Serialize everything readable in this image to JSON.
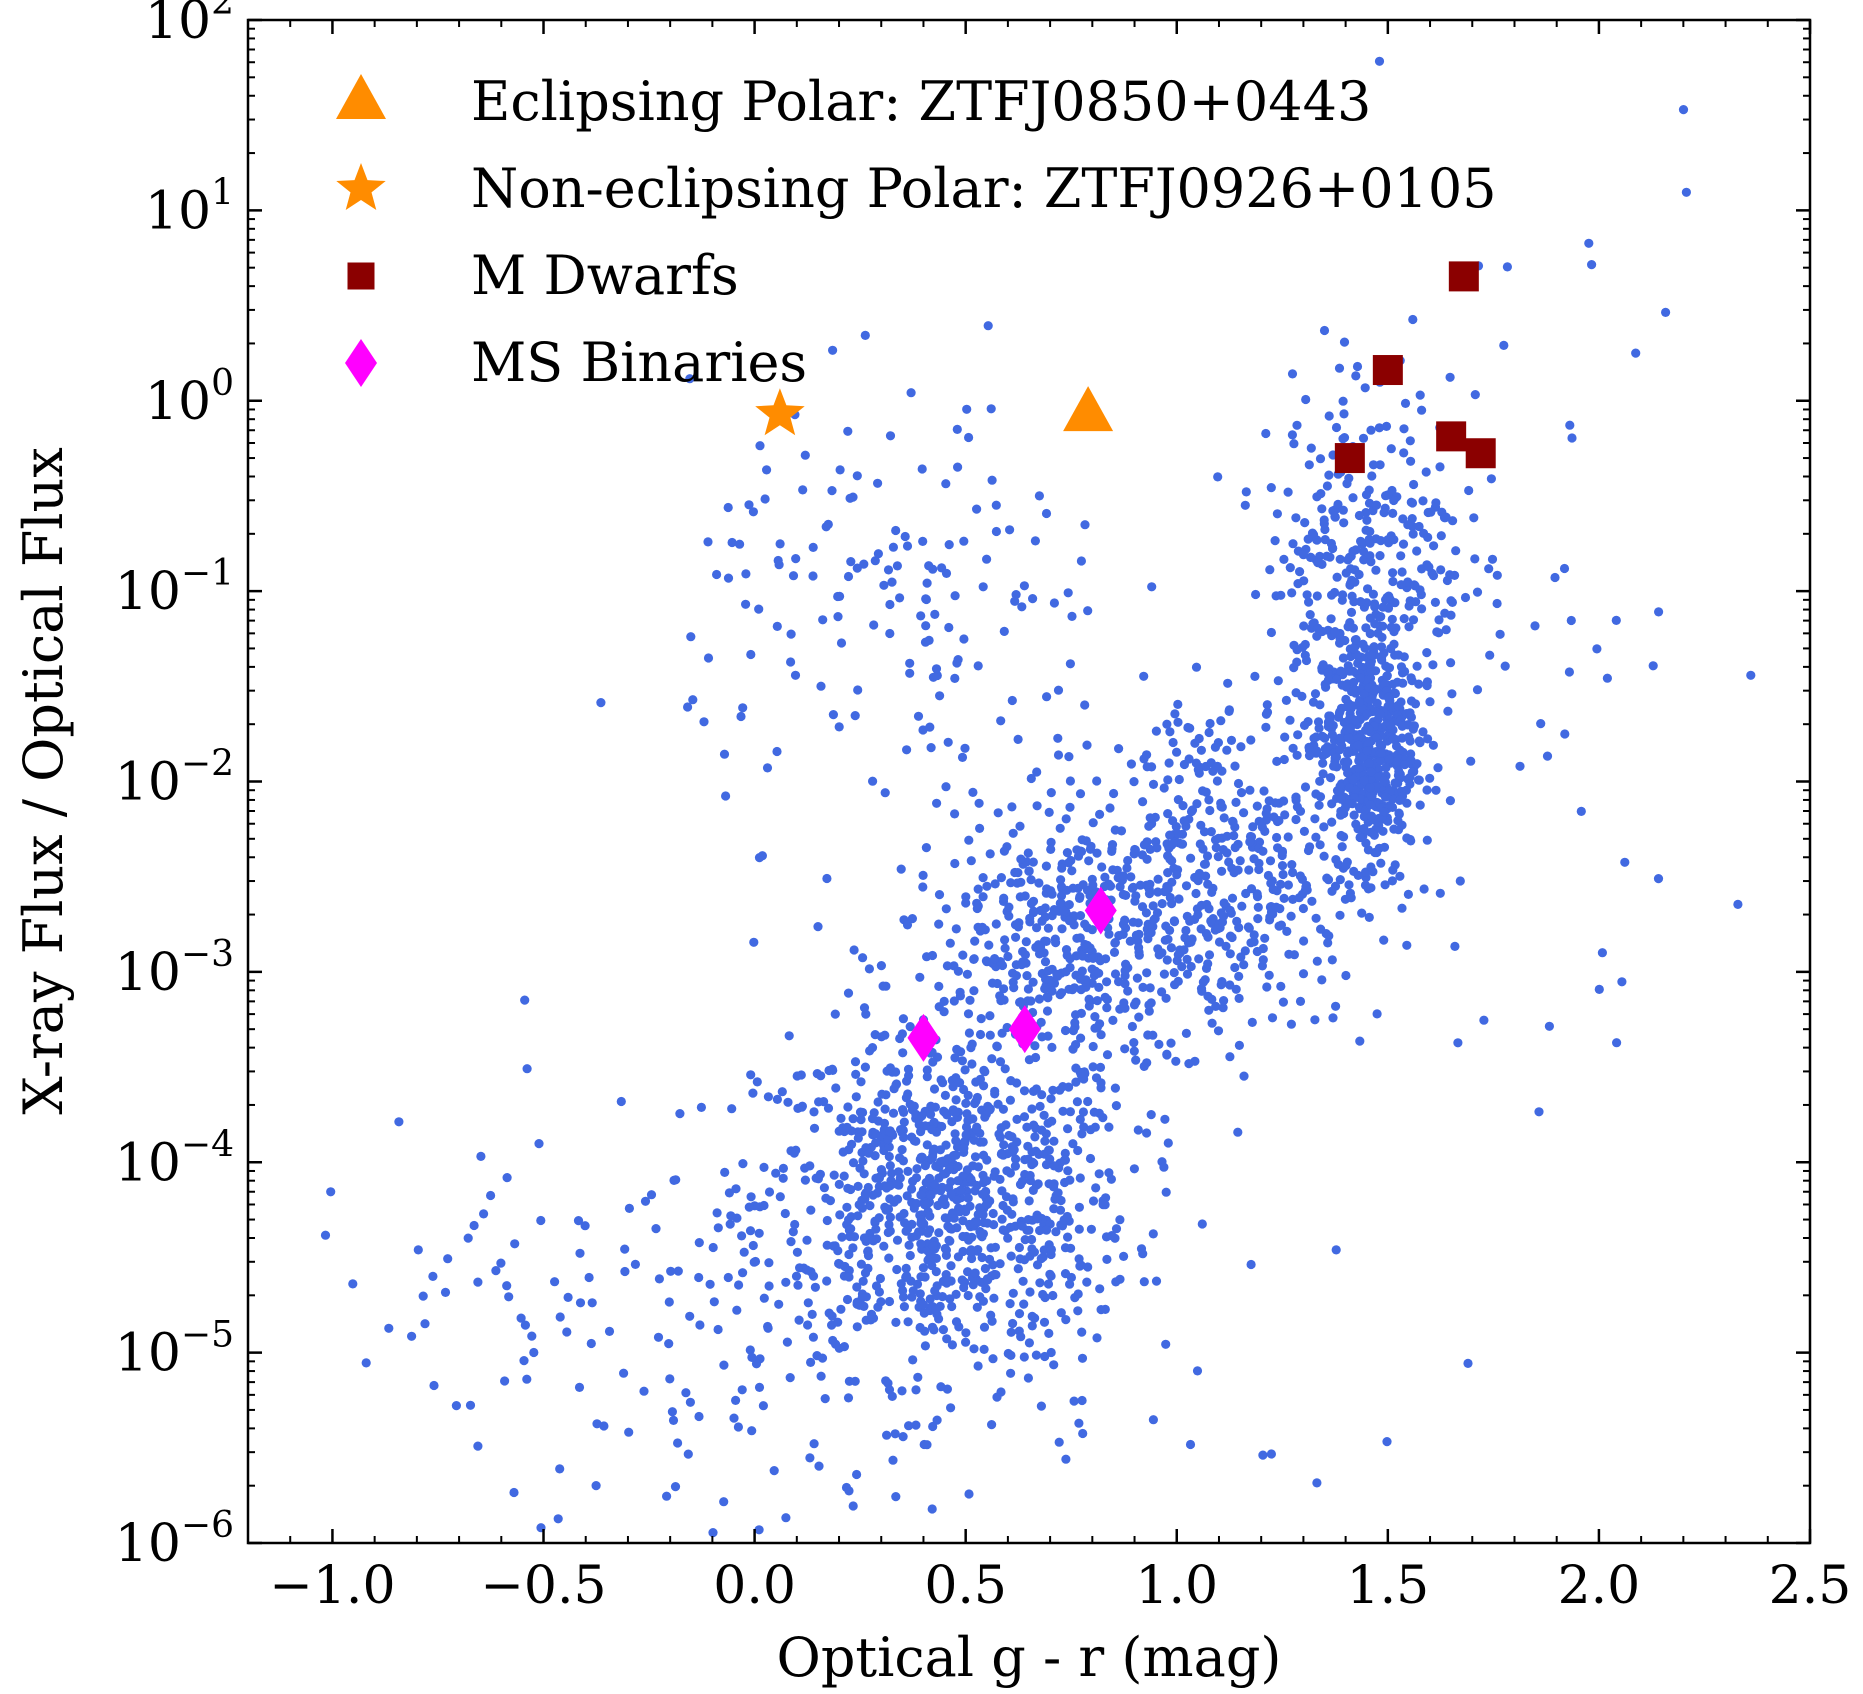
{
  "chart_data": {
    "type": "scatter",
    "xlabel": "Optical g - r (mag)",
    "ylabel": "X-ray Flux / Optical Flux",
    "xlim": [
      -1.2,
      2.5
    ],
    "ylim_log10": [
      -6,
      2
    ],
    "y_scale": "log",
    "x_ticks": [
      {
        "value": -1.0,
        "label": "−1.0"
      },
      {
        "value": -0.5,
        "label": "−0.5"
      },
      {
        "value": 0.0,
        "label": "0.0"
      },
      {
        "value": 0.5,
        "label": "0.5"
      },
      {
        "value": 1.0,
        "label": "1.0"
      },
      {
        "value": 1.5,
        "label": "1.5"
      },
      {
        "value": 2.0,
        "label": "2.0"
      },
      {
        "value": 2.5,
        "label": "2.5"
      }
    ],
    "y_ticks": [
      {
        "exp": 2,
        "base": "10",
        "sup": "2"
      },
      {
        "exp": 1,
        "base": "10",
        "sup": "1"
      },
      {
        "exp": 0,
        "base": "10",
        "sup": "0"
      },
      {
        "exp": -1,
        "base": "10",
        "sup": "−1"
      },
      {
        "exp": -2,
        "base": "10",
        "sup": "−2"
      },
      {
        "exp": -3,
        "base": "10",
        "sup": "−3"
      },
      {
        "exp": -4,
        "base": "10",
        "sup": "−4"
      },
      {
        "exp": -5,
        "base": "10",
        "sup": "−5"
      },
      {
        "exp": -6,
        "base": "10",
        "sup": "−6"
      }
    ],
    "legend_position": "top-left",
    "series": [
      {
        "name": "Eclipsing Polar: ZTFJ0850+0443",
        "marker": "triangle",
        "color": "#ff8c00",
        "points": [
          {
            "x": 0.79,
            "y": 0.85
          }
        ]
      },
      {
        "name": "Non-eclipsing Polar: ZTFJ0926+0105",
        "marker": "star",
        "color": "#ff8c00",
        "points": [
          {
            "x": 0.06,
            "y": 0.85
          }
        ]
      },
      {
        "name": "M Dwarfs",
        "marker": "square",
        "color": "#8b0000",
        "points": [
          {
            "x": 1.68,
            "y": 4.5
          },
          {
            "x": 1.5,
            "y": 1.45
          },
          {
            "x": 1.41,
            "y": 0.5
          },
          {
            "x": 1.65,
            "y": 0.65
          },
          {
            "x": 1.72,
            "y": 0.53
          }
        ]
      },
      {
        "name": "MS Binaries",
        "marker": "diamond",
        "color": "#ff00ff",
        "points": [
          {
            "x": 0.82,
            "y": 0.0021
          },
          {
            "x": 0.4,
            "y": 0.00045
          },
          {
            "x": 0.64,
            "y": 0.0005
          }
        ]
      }
    ],
    "background_sample": {
      "color": "#4169e1",
      "marker": "circle",
      "note_free_points_generated": true,
      "clusters": [
        {
          "x_center": 0.45,
          "x_sd": 0.22,
          "log10y_center": -4.2,
          "log10y_sd": 0.45,
          "count": 950
        },
        {
          "x_center": 0.75,
          "x_sd": 0.2,
          "log10y_center": -2.9,
          "log10y_sd": 0.35,
          "count": 450
        },
        {
          "x_center": 1.1,
          "x_sd": 0.2,
          "log10y_center": -2.4,
          "log10y_sd": 0.45,
          "count": 450
        },
        {
          "x_center": 1.45,
          "x_sd": 0.06,
          "log10y_center": -1.8,
          "log10y_sd": 0.3,
          "count": 520
        },
        {
          "x_center": 1.45,
          "x_sd": 0.12,
          "log10y_center": -0.8,
          "log10y_sd": 0.45,
          "count": 320
        },
        {
          "x_center": 0.35,
          "x_sd": 0.25,
          "log10y_center": -1.1,
          "log10y_sd": 0.55,
          "count": 160
        },
        {
          "x_center": -0.4,
          "x_sd": 0.35,
          "log10y_center": -4.8,
          "log10y_sd": 0.5,
          "count": 90
        },
        {
          "x_center": 1.8,
          "x_sd": 0.3,
          "log10y_center": -1.0,
          "log10y_sd": 1.3,
          "count": 60
        },
        {
          "x_center": 0.2,
          "x_sd": 0.5,
          "log10y_center": -5.3,
          "log10y_sd": 0.4,
          "count": 90
        }
      ]
    }
  }
}
